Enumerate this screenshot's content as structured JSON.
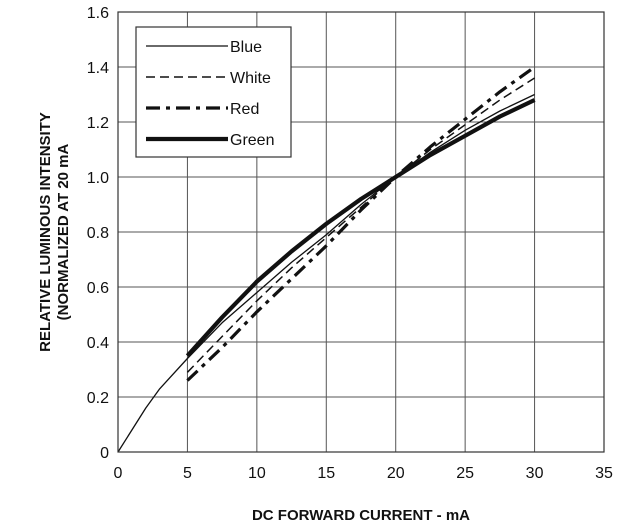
{
  "chart_data": {
    "type": "line",
    "xlabel": "DC FORWARD CURRENT - mA",
    "ylabel_line1": "RELATIVE LUMINOUS INTENSITY",
    "ylabel_line2": "(NORMALIZED AT 20 mA",
    "xlim": [
      0,
      35
    ],
    "ylim": [
      0,
      1.6
    ],
    "xticks": [
      0,
      5,
      10,
      15,
      20,
      25,
      30,
      35
    ],
    "yticks": [
      0,
      0.2,
      0.4,
      0.6,
      0.8,
      1.0,
      1.2,
      1.4,
      1.6
    ],
    "ytick_labels": [
      "0",
      "0.2",
      "0.4",
      "0.6",
      "0.8",
      "1.0",
      "1.2",
      "1.4",
      "1.6"
    ],
    "grid": true,
    "legend_position": "top-left",
    "series": [
      {
        "name": "Blue",
        "style": "thin-solid",
        "points": [
          [
            0,
            0
          ],
          [
            1,
            0.08
          ],
          [
            2,
            0.16
          ],
          [
            3,
            0.23
          ],
          [
            5,
            0.34
          ],
          [
            7.5,
            0.47
          ],
          [
            10,
            0.58
          ],
          [
            12.5,
            0.69
          ],
          [
            15,
            0.79
          ],
          [
            17.5,
            0.9
          ],
          [
            20,
            1.0
          ],
          [
            22.5,
            1.09
          ],
          [
            25,
            1.17
          ],
          [
            27.5,
            1.24
          ],
          [
            30,
            1.3
          ]
        ]
      },
      {
        "name": "White",
        "style": "dashed",
        "points": [
          [
            5,
            0.29
          ],
          [
            7.5,
            0.42
          ],
          [
            10,
            0.55
          ],
          [
            12.5,
            0.67
          ],
          [
            15,
            0.78
          ],
          [
            17.5,
            0.89
          ],
          [
            20,
            1.0
          ],
          [
            22.5,
            1.1
          ],
          [
            25,
            1.19
          ],
          [
            27.5,
            1.28
          ],
          [
            30,
            1.36
          ]
        ]
      },
      {
        "name": "Red",
        "style": "dash-dot",
        "points": [
          [
            5,
            0.26
          ],
          [
            7.5,
            0.38
          ],
          [
            10,
            0.51
          ],
          [
            12.5,
            0.63
          ],
          [
            15,
            0.75
          ],
          [
            17.5,
            0.88
          ],
          [
            20,
            1.0
          ],
          [
            22.5,
            1.11
          ],
          [
            25,
            1.21
          ],
          [
            27.5,
            1.31
          ],
          [
            30,
            1.4
          ]
        ]
      },
      {
        "name": "Green",
        "style": "thick-solid",
        "points": [
          [
            5,
            0.35
          ],
          [
            7.5,
            0.49
          ],
          [
            10,
            0.62
          ],
          [
            12.5,
            0.73
          ],
          [
            15,
            0.83
          ],
          [
            17.5,
            0.92
          ],
          [
            20,
            1.0
          ],
          [
            22.5,
            1.08
          ],
          [
            25,
            1.15
          ],
          [
            27.5,
            1.22
          ],
          [
            30,
            1.28
          ]
        ]
      }
    ]
  }
}
